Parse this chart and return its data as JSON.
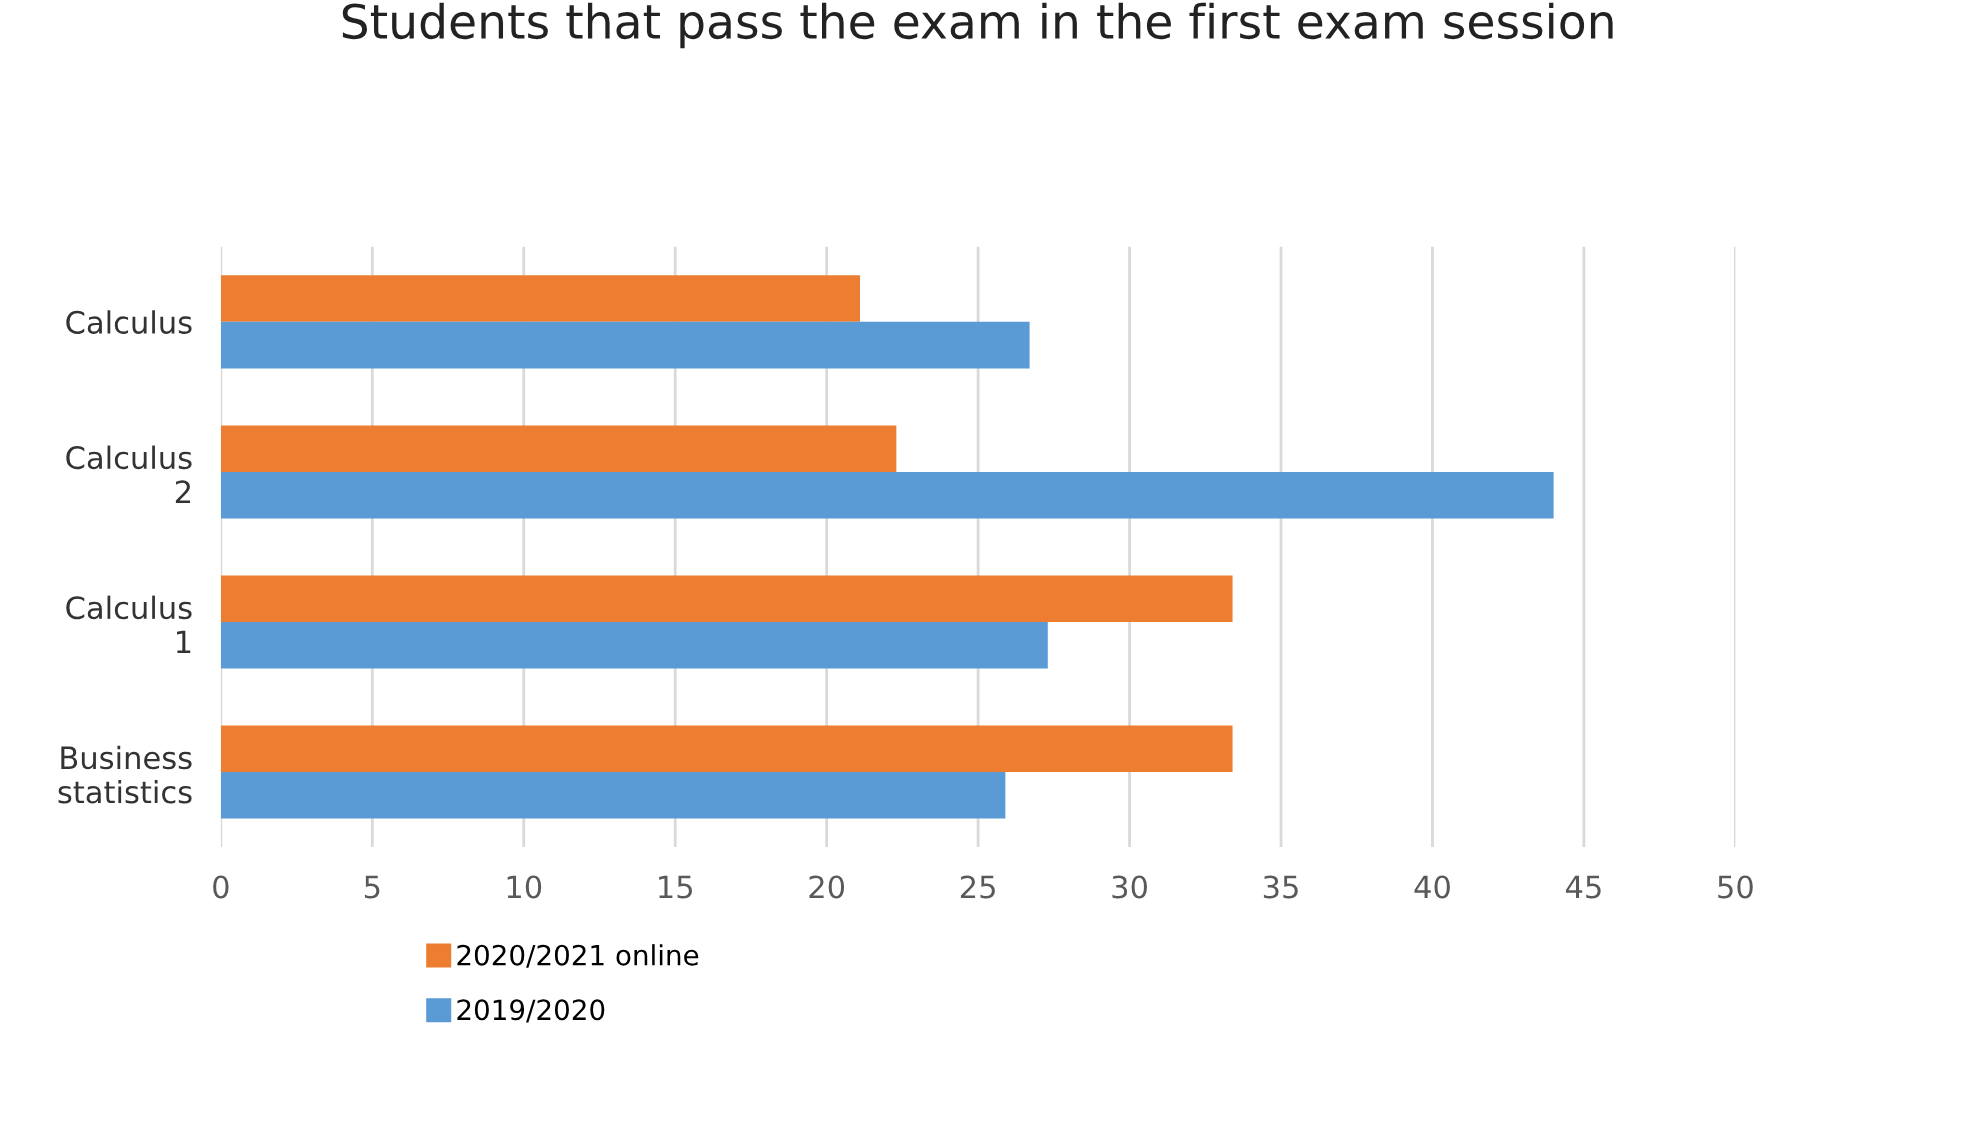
{
  "chart_data": {
    "type": "bar",
    "orientation": "horizontal",
    "title": "Students that pass the exam in the first exam session",
    "categories": [
      "Calculus",
      "Calculus 2",
      "Calculus 1",
      "Business statistics"
    ],
    "series": [
      {
        "name": "2020/2021 online",
        "color": "#ed7d31",
        "values": [
          21.1,
          22.3,
          33.4,
          33.4
        ]
      },
      {
        "name": "2019/2020",
        "color": "#5b9bd5",
        "values": [
          26.7,
          44.0,
          27.3,
          25.9
        ]
      }
    ],
    "xlim": [
      0,
      50
    ],
    "xticks": [
      0,
      5,
      10,
      15,
      20,
      25,
      30,
      35,
      40,
      45,
      50
    ],
    "grid": "x",
    "legend": "bottom"
  }
}
